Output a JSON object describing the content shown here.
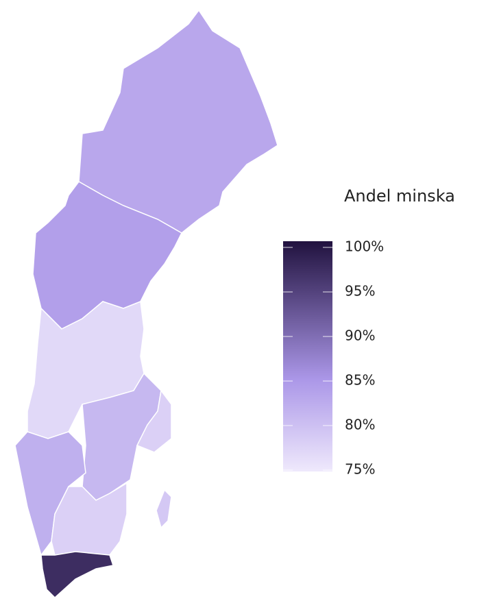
{
  "chart_data": {
    "type": "choropleth",
    "legend_title": "Andel minska",
    "values": [
      83,
      84,
      77,
      81,
      78,
      82,
      78,
      97,
      79
    ],
    "colorscale": [
      "#efe9fc",
      "#ab97e8",
      "#21123f"
    ],
    "clim": [
      75,
      100
    ],
    "cticks": [
      {
        "value": 100,
        "label": "100%"
      },
      {
        "value": 95,
        "label": "95%"
      },
      {
        "value": 90,
        "label": "90%"
      },
      {
        "value": 85,
        "label": "85%"
      },
      {
        "value": 80,
        "label": "80%"
      },
      {
        "value": 75,
        "label": "75%"
      }
    ]
  }
}
